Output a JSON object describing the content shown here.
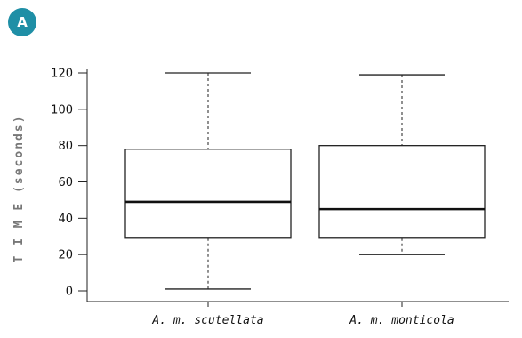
{
  "panel": {
    "label": "A",
    "badge_color": "#1f8fa6"
  },
  "chart_data": {
    "type": "boxplot",
    "title": "",
    "xlabel": "",
    "ylabel": "T I M E  (seconds)",
    "ylim": [
      -5,
      125
    ],
    "yticks": [
      0,
      20,
      40,
      60,
      80,
      100,
      120
    ],
    "grid": false,
    "categories": [
      "A. m. scutellata",
      "A. m. monticola"
    ],
    "boxes": [
      {
        "category": "A. m. scutellata",
        "min": 1,
        "q1": 29,
        "median": 49,
        "q3": 78,
        "max": 120
      },
      {
        "category": "A. m. monticola",
        "min": 20,
        "q1": 29,
        "median": 45,
        "q3": 80,
        "max": 119
      }
    ]
  }
}
